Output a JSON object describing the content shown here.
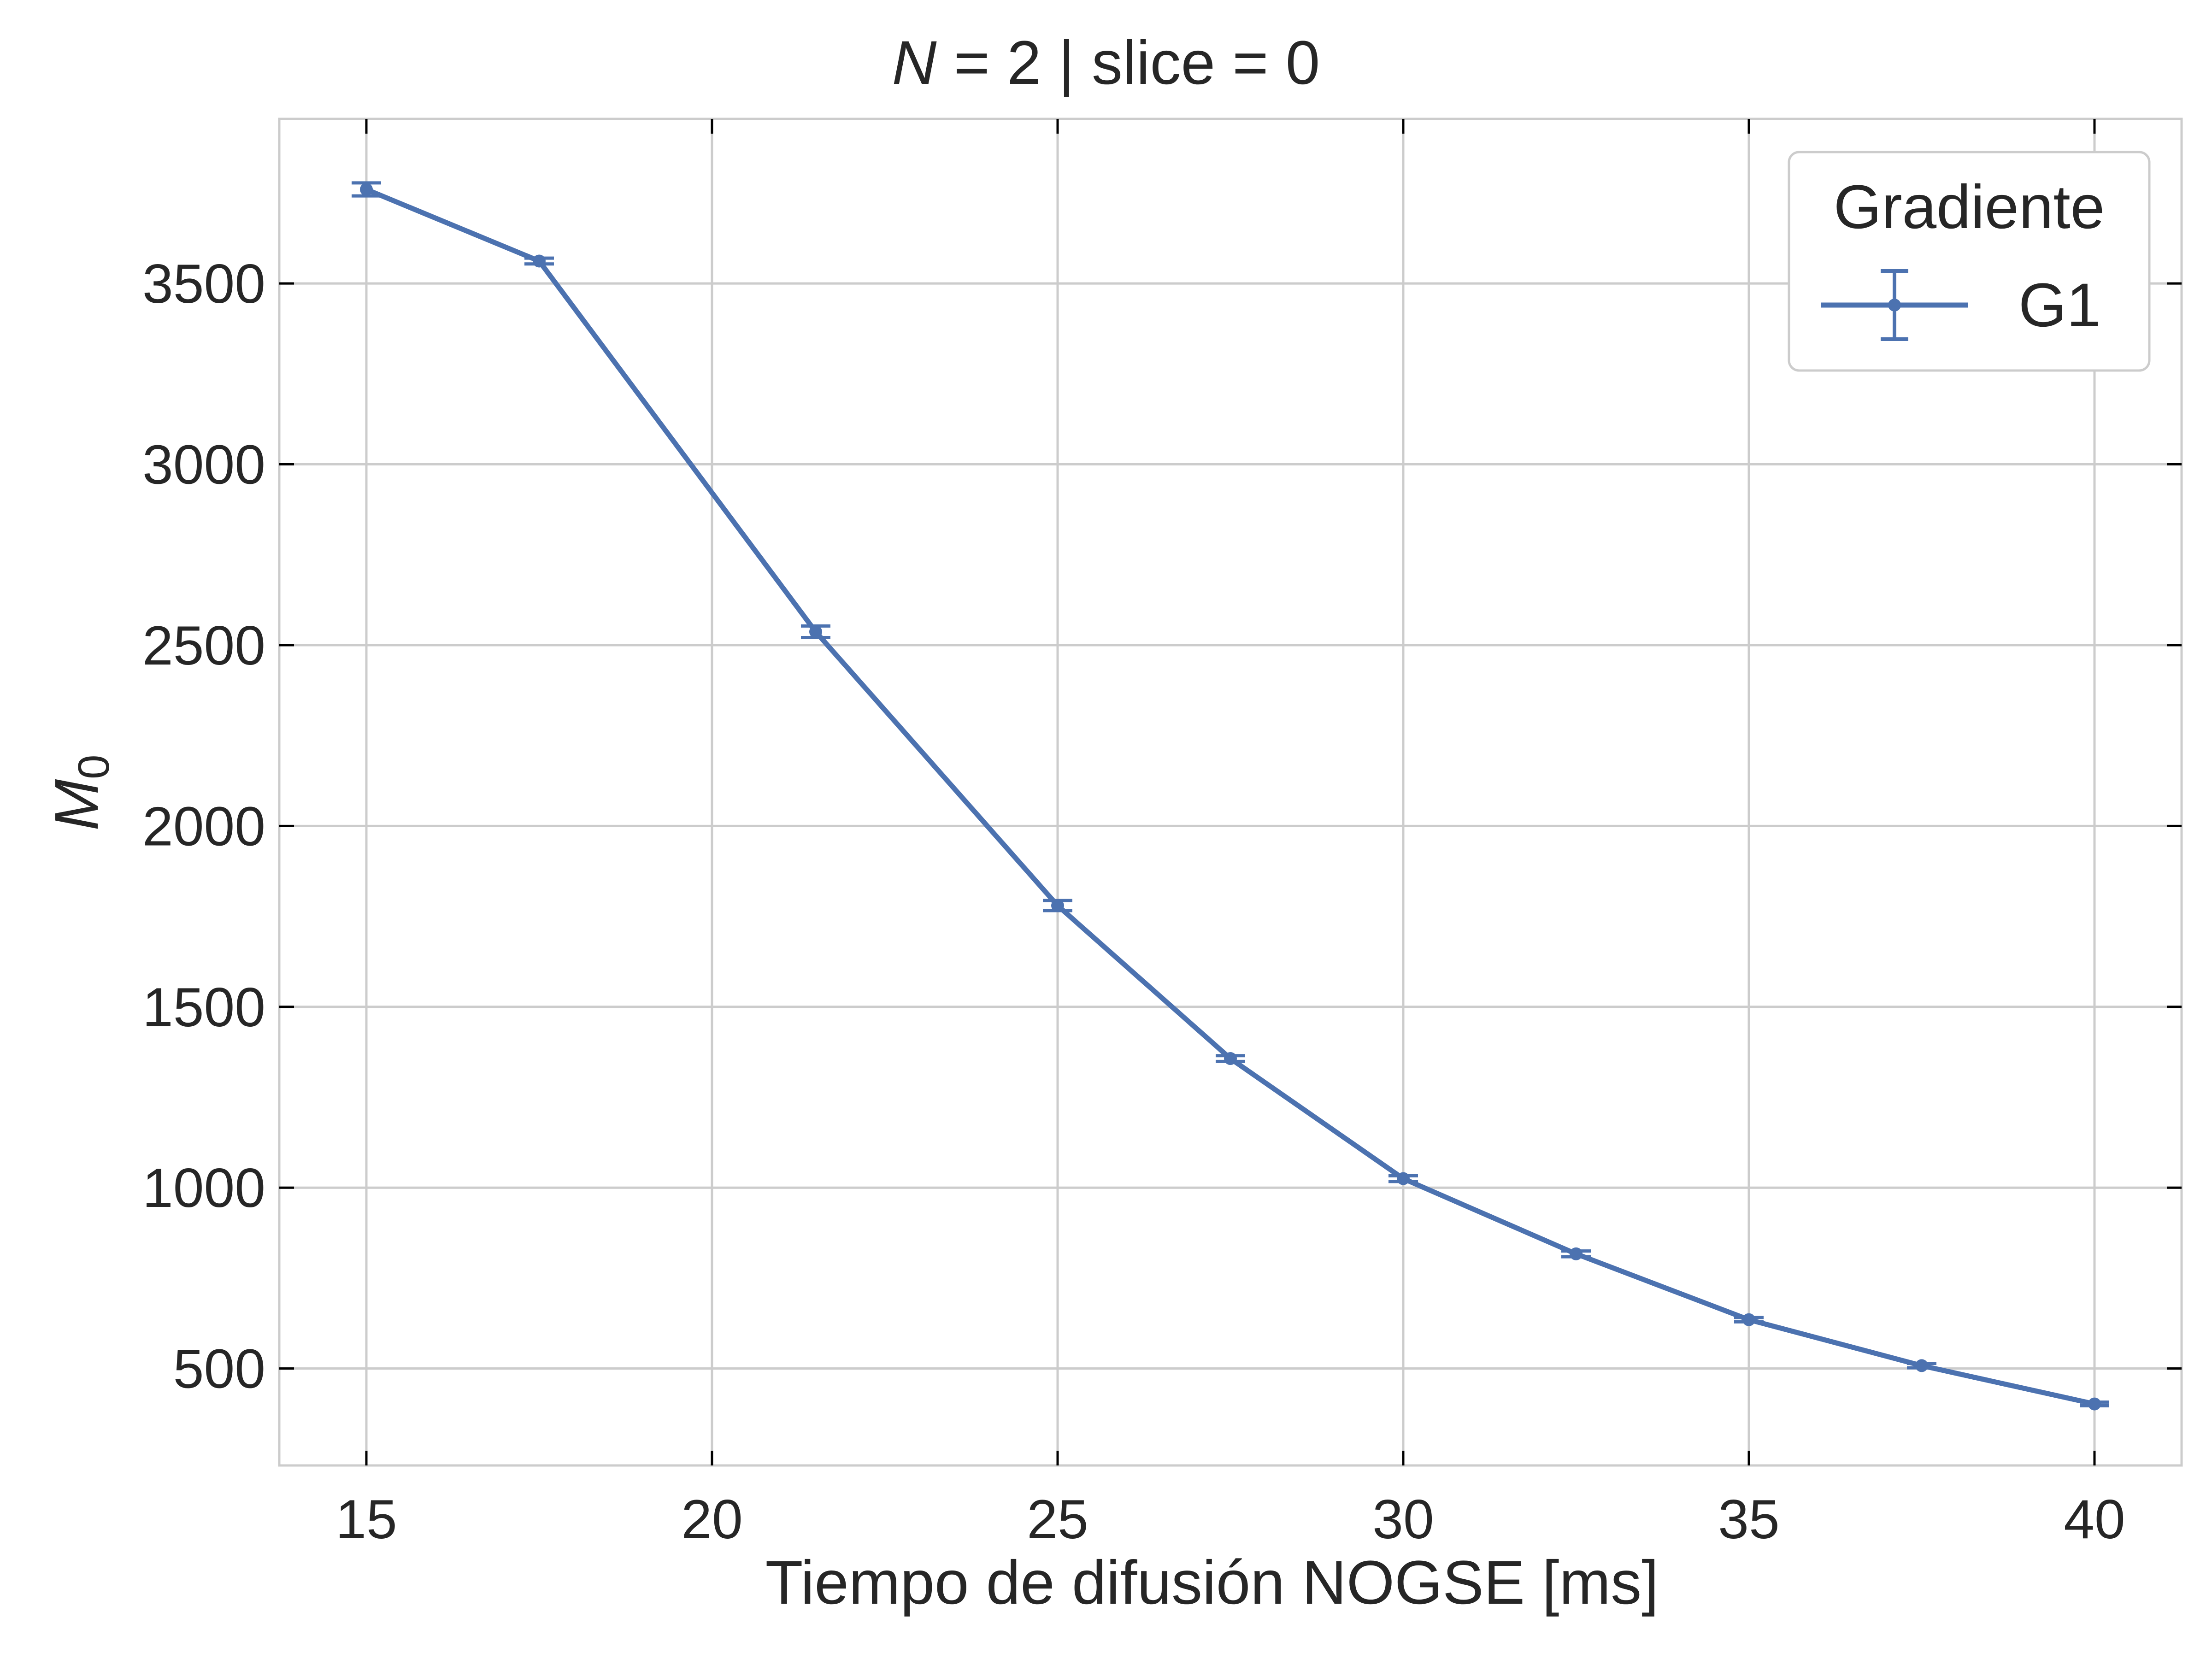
{
  "chart_data": {
    "type": "line",
    "title_italic": "N",
    "title_rest": " = 2 | slice = 0",
    "xlabel": "Tiempo de difusión NOGSE [ms]",
    "ylabel_main": "M",
    "ylabel_sub": "0",
    "xlim": [
      13.74,
      41.26
    ],
    "ylim": [
      232,
      3955
    ],
    "xticks": [
      15,
      20,
      25,
      30,
      35,
      40
    ],
    "yticks": [
      500,
      1000,
      1500,
      2000,
      2500,
      3000,
      3500
    ],
    "grid": true,
    "legend": {
      "title": "Gradiente",
      "position": "top-right"
    },
    "series": [
      {
        "name": "G1",
        "color": "#4c72b0",
        "x": [
          15,
          17.5,
          21.5,
          25,
          27.5,
          30,
          32.5,
          35,
          37.5,
          40
        ],
        "y": [
          3760,
          3562,
          2537,
          1780,
          1357,
          1025,
          817,
          635,
          508,
          402
        ],
        "err": [
          18,
          8,
          16,
          14,
          8,
          8,
          8,
          6,
          6,
          5
        ]
      }
    ]
  }
}
